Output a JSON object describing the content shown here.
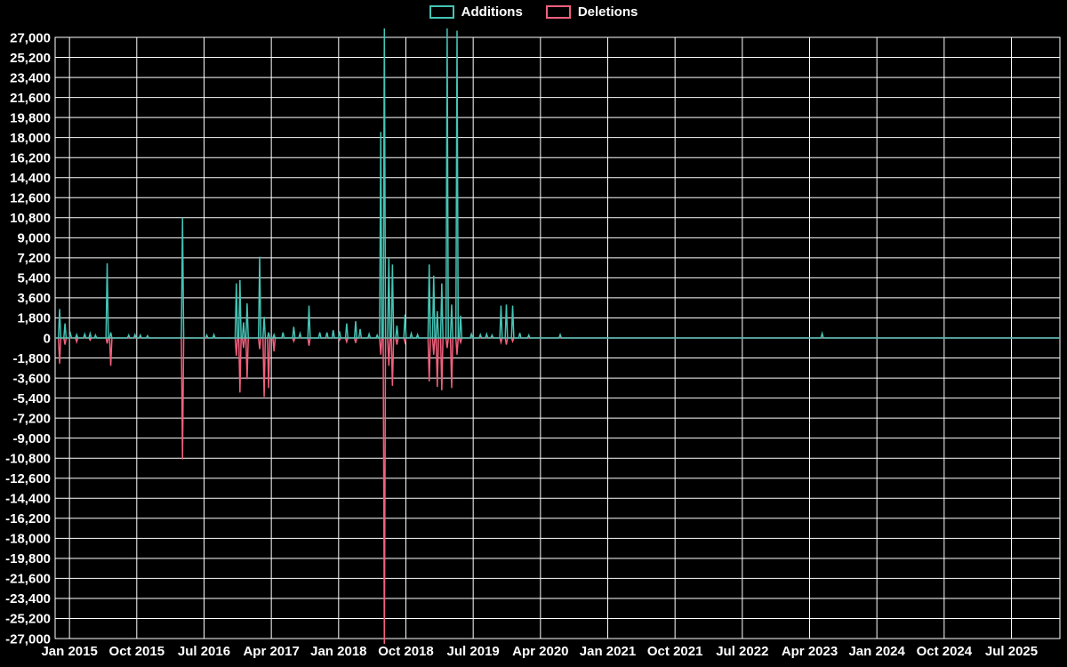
{
  "chart_data": {
    "type": "line",
    "title": "",
    "xlabel": "",
    "ylabel": "",
    "grid": true,
    "legend_position": "top-center",
    "background_color": "#000000",
    "grid_color": "#ffffff",
    "text_color": "#ffffff",
    "x_range": [
      2014.84,
      2026.04
    ],
    "y_range": [
      -27000,
      27000
    ],
    "y_tick_step": 1800,
    "y_ticks": [
      27000,
      25200,
      23400,
      21600,
      19800,
      18000,
      16200,
      14400,
      12600,
      10800,
      9000,
      7200,
      5400,
      3600,
      1800,
      0,
      -1800,
      -3600,
      -5400,
      -7200,
      -9000,
      -10800,
      -12600,
      -14400,
      -16200,
      -18000,
      -19800,
      -21600,
      -23400,
      -25200,
      -27000
    ],
    "x_tick_labels": [
      "Jan 2015",
      "Oct 2015",
      "Jul 2016",
      "Apr 2017",
      "Jan 2018",
      "Oct 2018",
      "Jul 2019",
      "Apr 2020",
      "Jan 2021",
      "Oct 2021",
      "Jul 2022",
      "Apr 2023",
      "Jan 2024",
      "Oct 2024",
      "Jul 2025"
    ],
    "x_tick_values": [
      2015.0,
      2015.75,
      2016.5,
      2017.25,
      2018.0,
      2018.75,
      2019.5,
      2020.25,
      2021.0,
      2021.75,
      2022.5,
      2023.25,
      2024.0,
      2024.75,
      2025.5
    ],
    "baseline": 0,
    "spike_half_width_years": 0.013,
    "series": [
      {
        "name": "Additions",
        "color": "#45c4b5",
        "points": [
          [
            2014.89,
            2600
          ],
          [
            2014.95,
            1300
          ],
          [
            2015.01,
            400
          ],
          [
            2015.08,
            300
          ],
          [
            2015.17,
            350
          ],
          [
            2015.23,
            400
          ],
          [
            2015.29,
            250
          ],
          [
            2015.42,
            6700
          ],
          [
            2015.46,
            500
          ],
          [
            2015.66,
            250
          ],
          [
            2015.73,
            300
          ],
          [
            2015.79,
            250
          ],
          [
            2015.87,
            200
          ],
          [
            2016.26,
            10800
          ],
          [
            2016.53,
            250
          ],
          [
            2016.61,
            300
          ],
          [
            2016.86,
            4900
          ],
          [
            2016.9,
            5200
          ],
          [
            2016.94,
            1400
          ],
          [
            2016.98,
            3100
          ],
          [
            2017.12,
            7300
          ],
          [
            2017.17,
            1900
          ],
          [
            2017.22,
            500
          ],
          [
            2017.28,
            300
          ],
          [
            2017.38,
            500
          ],
          [
            2017.5,
            1000
          ],
          [
            2017.57,
            400
          ],
          [
            2017.67,
            2900
          ],
          [
            2017.79,
            500
          ],
          [
            2017.87,
            500
          ],
          [
            2017.94,
            700
          ],
          [
            2018.01,
            600
          ],
          [
            2018.09,
            1300
          ],
          [
            2018.19,
            1500
          ],
          [
            2018.24,
            800
          ],
          [
            2018.34,
            350
          ],
          [
            2018.43,
            250
          ],
          [
            2018.47,
            18500
          ],
          [
            2018.51,
            27800
          ],
          [
            2018.56,
            7200
          ],
          [
            2018.6,
            6600
          ],
          [
            2018.65,
            1100
          ],
          [
            2018.74,
            2100
          ],
          [
            2018.81,
            400
          ],
          [
            2018.88,
            300
          ],
          [
            2019.01,
            6600
          ],
          [
            2019.06,
            5600
          ],
          [
            2019.1,
            2400
          ],
          [
            2019.15,
            4900
          ],
          [
            2019.21,
            27800
          ],
          [
            2019.26,
            3000
          ],
          [
            2019.32,
            27600
          ],
          [
            2019.36,
            2000
          ],
          [
            2019.48,
            350
          ],
          [
            2019.58,
            300
          ],
          [
            2019.65,
            350
          ],
          [
            2019.71,
            250
          ],
          [
            2019.81,
            2900
          ],
          [
            2019.87,
            3000
          ],
          [
            2019.94,
            2900
          ],
          [
            2020.02,
            450
          ],
          [
            2020.12,
            250
          ],
          [
            2020.47,
            300
          ],
          [
            2023.39,
            400
          ]
        ]
      },
      {
        "name": "Deletions",
        "color": "#f2607d",
        "points": [
          [
            2014.89,
            -2300
          ],
          [
            2014.95,
            -600
          ],
          [
            2015.08,
            -350
          ],
          [
            2015.23,
            -200
          ],
          [
            2015.42,
            -500
          ],
          [
            2015.46,
            -2500
          ],
          [
            2016.26,
            -10900
          ],
          [
            2016.86,
            -1600
          ],
          [
            2016.9,
            -4900
          ],
          [
            2016.94,
            -900
          ],
          [
            2016.98,
            -3700
          ],
          [
            2017.12,
            -1000
          ],
          [
            2017.17,
            -5300
          ],
          [
            2017.22,
            -4500
          ],
          [
            2017.28,
            -1200
          ],
          [
            2017.5,
            -300
          ],
          [
            2017.67,
            -700
          ],
          [
            2018.01,
            -200
          ],
          [
            2018.09,
            -350
          ],
          [
            2018.19,
            -450
          ],
          [
            2018.47,
            -1500
          ],
          [
            2018.51,
            -28000
          ],
          [
            2018.56,
            -2500
          ],
          [
            2018.6,
            -4300
          ],
          [
            2018.65,
            -600
          ],
          [
            2018.74,
            -400
          ],
          [
            2019.01,
            -3900
          ],
          [
            2019.06,
            -1500
          ],
          [
            2019.1,
            -4400
          ],
          [
            2019.15,
            -4700
          ],
          [
            2019.21,
            -900
          ],
          [
            2019.26,
            -4500
          ],
          [
            2019.32,
            -1500
          ],
          [
            2019.36,
            -400
          ],
          [
            2019.81,
            -400
          ],
          [
            2019.87,
            -600
          ],
          [
            2019.94,
            -300
          ]
        ]
      }
    ]
  }
}
